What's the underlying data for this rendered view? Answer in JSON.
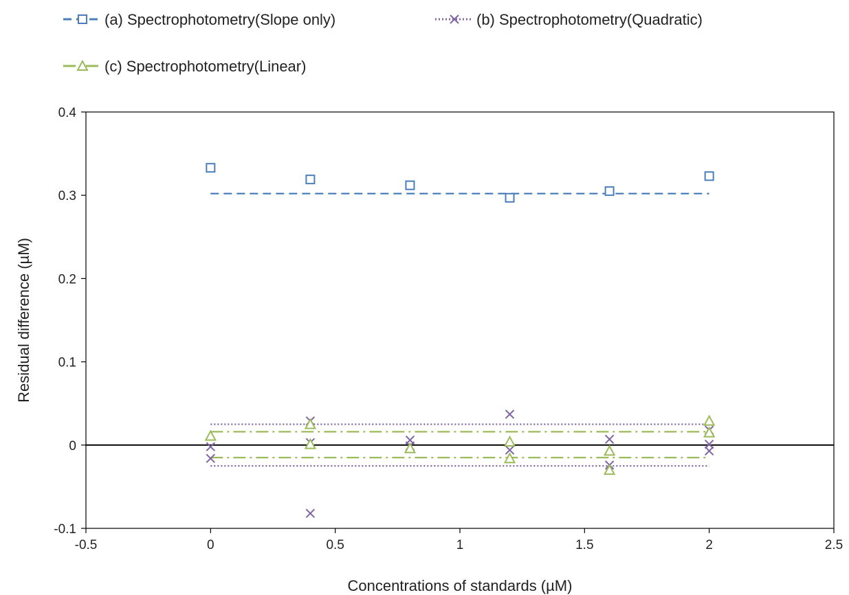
{
  "chart_data": {
    "type": "scatter",
    "title": "",
    "xlabel": "Concentrations of standards (µM)",
    "ylabel": "Residual difference (µM)",
    "xlim": [
      -0.5,
      2.5
    ],
    "ylim": [
      -0.1,
      0.4
    ],
    "x_ticks": [
      "-0.5",
      "0",
      "0.5",
      "1",
      "1.5",
      "2",
      "2.5"
    ],
    "y_ticks": [
      "-0.1",
      "0",
      "0.1",
      "0.2",
      "0.3",
      "0.4"
    ],
    "x_tick_values": [
      -0.5,
      0,
      0.5,
      1,
      1.5,
      2,
      2.5
    ],
    "y_tick_values": [
      -0.1,
      0,
      0.1,
      0.2,
      0.3,
      0.4
    ],
    "grid": false,
    "legend_position": "top",
    "zero_line": 0,
    "series": [
      {
        "name": "(a) Spectrophotometry(Slope only)",
        "marker": "square",
        "color": "#4a7ebb",
        "points": [
          [
            0,
            0.333
          ],
          [
            0.4,
            0.319
          ],
          [
            0.8,
            0.312
          ],
          [
            1.2,
            0.297
          ],
          [
            1.6,
            0.305
          ],
          [
            2.0,
            0.323
          ]
        ],
        "limit_lines": [
          0.302
        ],
        "limit_style": "dashed"
      },
      {
        "name": "(b) Spectrophotometry(Quadratic)",
        "marker": "x",
        "color": "#8064a2",
        "points": [
          [
            0,
            -0.002
          ],
          [
            0,
            -0.016
          ],
          [
            0.4,
            0.029
          ],
          [
            0.4,
            0.003
          ],
          [
            0.4,
            -0.082
          ],
          [
            0.8,
            0.006
          ],
          [
            0.8,
            -0.001
          ],
          [
            1.2,
            0.037
          ],
          [
            1.2,
            -0.006
          ],
          [
            1.6,
            0.007
          ],
          [
            1.6,
            -0.024
          ],
          [
            2.0,
            0.018
          ],
          [
            2.0,
            0.001
          ],
          [
            2.0,
            -0.007
          ]
        ],
        "limit_lines": [
          0.025,
          -0.025
        ],
        "limit_style": "dotted"
      },
      {
        "name": "(c) Spectrophotometry(Linear)",
        "marker": "triangle",
        "color": "#9bbb59",
        "points": [
          [
            0,
            0.011
          ],
          [
            0.4,
            0.025
          ],
          [
            0.4,
            0.001
          ],
          [
            0.8,
            -0.004
          ],
          [
            1.2,
            0.004
          ],
          [
            1.2,
            -0.016
          ],
          [
            1.6,
            -0.007
          ],
          [
            1.6,
            -0.03
          ],
          [
            2.0,
            0.029
          ],
          [
            2.0,
            0.015
          ]
        ],
        "limit_lines": [
          0.016,
          -0.015
        ],
        "limit_style": "dashdot"
      }
    ]
  }
}
